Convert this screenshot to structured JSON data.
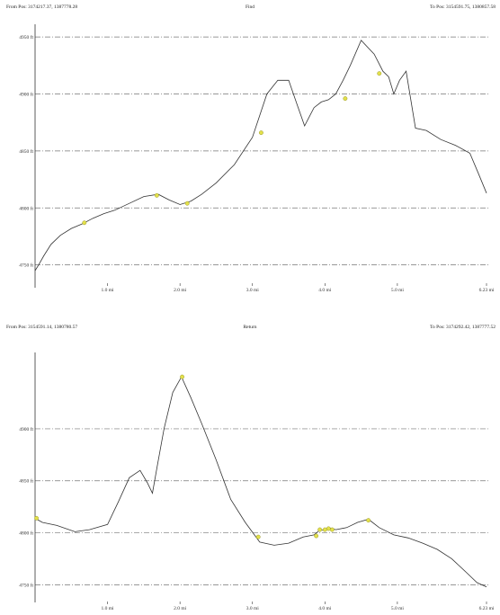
{
  "chart_data": [
    {
      "type": "line",
      "title": "Find",
      "from_label": "From Pos: 3174217.37, 1387778.28",
      "to_label": "To Pos: 3154591.75, 1380857.58",
      "xlim": [
        0,
        6.23
      ],
      "ylim": [
        4730,
        4958
      ],
      "y_ticks": [
        4750,
        4800,
        4850,
        4900,
        4950
      ],
      "y_tick_labels": [
        "4750 ft",
        "4800 ft",
        "4850 ft",
        "4900 ft",
        "4950 ft"
      ],
      "x_ticks": [
        1,
        2,
        3,
        4,
        5,
        6.23
      ],
      "x_tick_labels": [
        "1.0 mi",
        "2.0 mi",
        "3.0 mi",
        "4.0 mi",
        "5.0 mi",
        "6.23 mi"
      ],
      "grid": true,
      "x": [
        0,
        0.05,
        0.12,
        0.22,
        0.35,
        0.5,
        0.65,
        0.8,
        0.95,
        1.1,
        1.3,
        1.5,
        1.7,
        1.85,
        2.0,
        2.15,
        2.3,
        2.5,
        2.75,
        3.0,
        3.2,
        3.35,
        3.5,
        3.62,
        3.72,
        3.85,
        3.95,
        4.05,
        4.15,
        4.25,
        4.35,
        4.5,
        4.68,
        4.8,
        4.88,
        4.95,
        5.03,
        5.12,
        5.25,
        5.4,
        5.6,
        5.8,
        6.0,
        6.12,
        6.23
      ],
      "y": [
        4745,
        4750,
        4758,
        4768,
        4776,
        4782,
        4786,
        4791,
        4795,
        4798,
        4804,
        4810,
        4812,
        4807,
        4803,
        4806,
        4812,
        4822,
        4838,
        4862,
        4900,
        4912,
        4912,
        4890,
        4872,
        4888,
        4893,
        4895,
        4900,
        4912,
        4925,
        4947,
        4935,
        4920,
        4915,
        4900,
        4912,
        4920,
        4870,
        4868,
        4860,
        4855,
        4848,
        4830,
        4813
      ],
      "waypoints_x": [
        0.68,
        1.68,
        2.1,
        3.12,
        4.28,
        4.75
      ],
      "waypoints_y": [
        4787,
        4811,
        4804,
        4866,
        4896,
        4918
      ]
    },
    {
      "type": "line",
      "title": "Return",
      "from_label": "From Pos: 3154591.14, 1380780.57",
      "to_label": "To Pos: 3174292.42, 1387777.52",
      "xlim": [
        0,
        6.23
      ],
      "ylim": [
        4733,
        4970
      ],
      "y_ticks": [
        4750,
        4800,
        4850,
        4900
      ],
      "y_tick_labels": [
        "4750 ft",
        "4800 ft",
        "4850 ft",
        "4900 ft"
      ],
      "x_ticks": [
        1,
        2,
        3,
        4,
        5,
        6.23
      ],
      "x_tick_labels": [
        "1.0 mi",
        "2.0 mi",
        "3.0 mi",
        "4.0 mi",
        "5.0 mi",
        "6.23 mi"
      ],
      "grid": true,
      "x": [
        0,
        0.1,
        0.3,
        0.55,
        0.75,
        1.0,
        1.15,
        1.3,
        1.45,
        1.55,
        1.62,
        1.68,
        1.78,
        1.9,
        2.02,
        2.15,
        2.3,
        2.5,
        2.7,
        2.9,
        3.1,
        3.3,
        3.5,
        3.7,
        3.85,
        3.92,
        3.98,
        4.05,
        4.15,
        4.3,
        4.45,
        4.6,
        4.75,
        4.95,
        5.15,
        5.35,
        5.55,
        5.75,
        5.95,
        6.1,
        6.23
      ],
      "y": [
        4814,
        4810,
        4807,
        4801,
        4803,
        4808,
        4830,
        4853,
        4860,
        4848,
        4838,
        4862,
        4900,
        4935,
        4950,
        4930,
        4905,
        4870,
        4832,
        4810,
        4791,
        4788,
        4790,
        4796,
        4798,
        4802,
        4803,
        4805,
        4803,
        4805,
        4810,
        4813,
        4805,
        4798,
        4795,
        4790,
        4784,
        4775,
        4762,
        4752,
        4748
      ],
      "waypoints_x": [
        0.02,
        2.03,
        3.08,
        3.88,
        3.93,
        4.0,
        4.05,
        4.1,
        4.6
      ],
      "waypoints_y": [
        4814,
        4950,
        4796,
        4797,
        4803,
        4803,
        4804,
        4803,
        4812
      ]
    }
  ]
}
